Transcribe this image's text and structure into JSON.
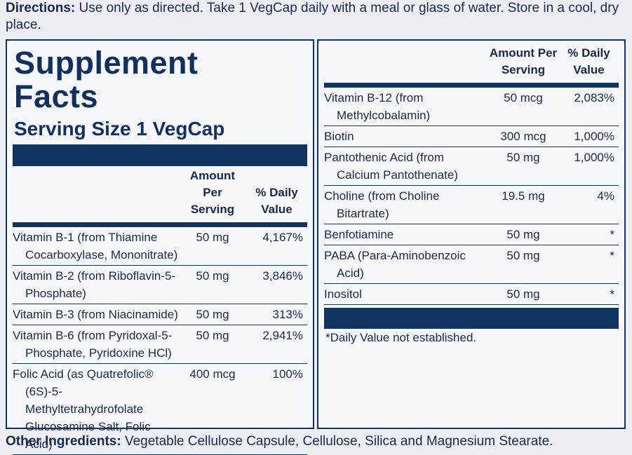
{
  "directions": {
    "label": "Directions:",
    "text": "Use only as directed. Take 1 VegCap daily with a meal or glass of water. Store in a cool, dry place."
  },
  "title": "Supplement Facts",
  "serving_size": "Serving Size 1 VegCap",
  "columns": {
    "amount": "Amount Per Serving",
    "daily_value": "% Daily Value"
  },
  "left_rows": [
    [
      "Vitamin B-1 (from Thiamine Cocarboxylase, Mononitrate)",
      "50 mg",
      "4,167%"
    ],
    [
      "Vitamin B-2 (from Riboflavin-5-Phosphate)",
      "50 mg",
      "3,846%"
    ],
    [
      "Vitamin B-3 (from Niacinamide)",
      "50 mg",
      "313%"
    ],
    [
      "Vitamin B-6 (from Pyridoxal-5-Phosphate, Pyridoxine HCl)",
      "50 mg",
      "2,941%"
    ],
    [
      "Folic Acid (as Quatrefolic® (6S)-5-Methyltetrahydrofolate Glucosamine Salt, Folic Acid)",
      "400 mcg",
      "100%"
    ]
  ],
  "right_rows": [
    [
      "Vitamin B-12 (from Methylcobalamin)",
      "50 mcg",
      "2,083%"
    ],
    [
      "Biotin",
      "300 mcg",
      "1,000%"
    ],
    [
      "Pantothenic Acid (from Calcium Pantothenate)",
      "50 mg",
      "1,000%"
    ],
    [
      "Choline (from Choline Bitartrate)",
      "19.5 mg",
      "4%"
    ],
    [
      "Benfotiamine",
      "50 mg",
      "*"
    ],
    [
      "PABA (Para-Aminobenzoic Acid)",
      "50 mg",
      "*"
    ],
    [
      "Inositol",
      "50 mg",
      "*"
    ]
  ],
  "footnote": "*Daily Value not established.",
  "other_ingredients": {
    "label": "Other Ingredients:",
    "text": "Vegetable Cellulose Capsule, Cellulose, Silica and Magnesium Stearate."
  }
}
